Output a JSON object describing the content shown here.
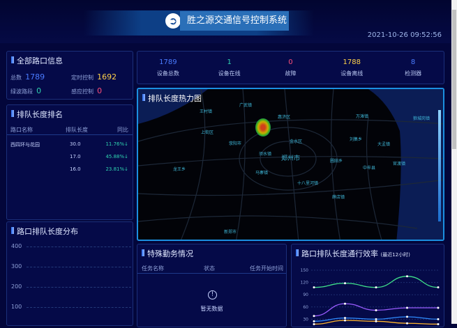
{
  "header": {
    "title": "胜之源交通信号控制系统",
    "datetime": "2021-10-26 09:52:56"
  },
  "intersection_info": {
    "title": "全部路口信息",
    "total_label": "总数",
    "total": "1789",
    "timed_label": "定时控制",
    "timed": "1692",
    "green_wave_label": "绿波路段",
    "green_wave": "0",
    "induction_label": "感应控制",
    "induction": "0"
  },
  "ranking": {
    "title": "排队长度排名",
    "columns": [
      "路口名称",
      "排队长度",
      "同比"
    ],
    "rows": [
      {
        "name": "西四环与花园",
        "length": "30.0",
        "yoy": "11.76%↓"
      },
      {
        "name": "",
        "length": "17.0",
        "yoy": "45.88%↓"
      },
      {
        "name": "",
        "length": "16.0",
        "yoy": "23.81%↓"
      }
    ]
  },
  "distribution": {
    "title": "路口排队长度分布",
    "yticks": [
      "400",
      "300",
      "200",
      "100"
    ]
  },
  "stats": [
    {
      "value": "1789",
      "label": "设备总数",
      "color": "#4a7bff"
    },
    {
      "value": "1",
      "label": "设备在线",
      "color": "#2fd4b0"
    },
    {
      "value": "0",
      "label": "故障",
      "color": "#ff4f7a"
    },
    {
      "value": "1788",
      "label": "设备离线",
      "color": "#ffd24a"
    },
    {
      "value": "8",
      "label": "检测器",
      "color": "#4a7bff"
    }
  ],
  "map": {
    "title": "排队长度热力图",
    "labels": [
      "广武镇",
      "王村镇",
      "惠济区",
      "万滩镇",
      "狼城岗镇",
      "上街区",
      "荥阳市",
      "金水区",
      "刘集乡",
      "大孟镇",
      "须水镇",
      "郑州市",
      "圃田乡",
      "中牟县",
      "官渡镇",
      "马寨镇",
      "十八里河镇",
      "薛店镇",
      "新郑市",
      "龙王乡"
    ]
  },
  "tasks": {
    "title": "特殊勤务情况",
    "columns": [
      "任务名称",
      "状态",
      "任务开始时间"
    ],
    "empty_text": "暂无数据"
  },
  "efficiency": {
    "title": "路口排队长度通行效率",
    "subtitle": "(最近12小时)",
    "chart_data": {
      "type": "line",
      "ylim": [
        0,
        150
      ],
      "yticks": [
        "150",
        "120",
        "90",
        "60",
        "30"
      ],
      "series": [
        {
          "color": "#3fe08a",
          "values": [
            108,
            118,
            108,
            135,
            108
          ]
        },
        {
          "color": "#9a5cff",
          "values": [
            38,
            68,
            52,
            58,
            58
          ]
        },
        {
          "color": "#2f8cff",
          "values": [
            25,
            33,
            30,
            36,
            30
          ]
        },
        {
          "color": "#ffb52e",
          "values": [
            18,
            27,
            25,
            20,
            18
          ]
        }
      ]
    }
  }
}
